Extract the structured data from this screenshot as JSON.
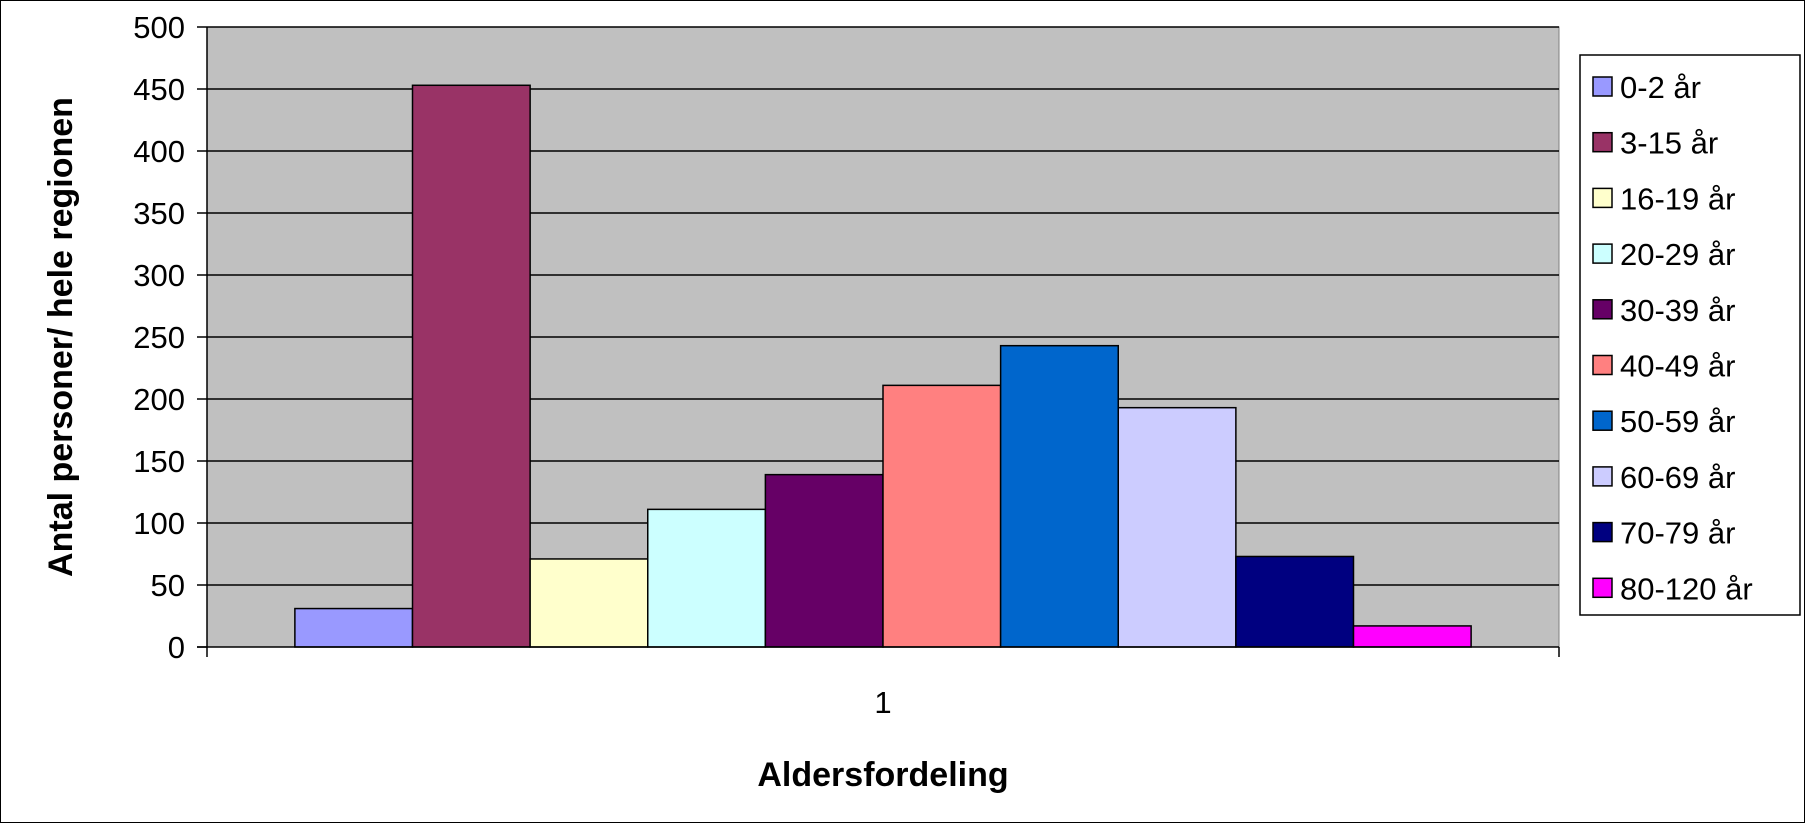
{
  "chart_data": {
    "type": "bar",
    "categories": [
      "1"
    ],
    "series": [
      {
        "name": "0-2 år",
        "values": [
          31
        ],
        "color": "#9999FF"
      },
      {
        "name": "3-15 år",
        "values": [
          453
        ],
        "color": "#993366"
      },
      {
        "name": "16-19 år",
        "values": [
          71
        ],
        "color": "#FFFFCC"
      },
      {
        "name": "20-29 år",
        "values": [
          111
        ],
        "color": "#CCFFFF"
      },
      {
        "name": "30-39 år",
        "values": [
          139
        ],
        "color": "#660066"
      },
      {
        "name": "40-49 år",
        "values": [
          211
        ],
        "color": "#FF8080"
      },
      {
        "name": "50-59 år",
        "values": [
          243
        ],
        "color": "#0066CC"
      },
      {
        "name": "60-69 år",
        "values": [
          193
        ],
        "color": "#CCCCFF"
      },
      {
        "name": "70-79 år",
        "values": [
          73
        ],
        "color": "#000080"
      },
      {
        "name": "80-120 år",
        "values": [
          17
        ],
        "color": "#FF00FF"
      }
    ],
    "title": "",
    "xlabel": "Aldersfordeling",
    "ylabel": "Antal personer/ hele regionen",
    "ylim": [
      0,
      500
    ],
    "yticks": [
      0,
      50,
      100,
      150,
      200,
      250,
      300,
      350,
      400,
      450,
      500
    ],
    "grid": true,
    "plot_background": "#C0C0C0",
    "legend_position": "right"
  }
}
